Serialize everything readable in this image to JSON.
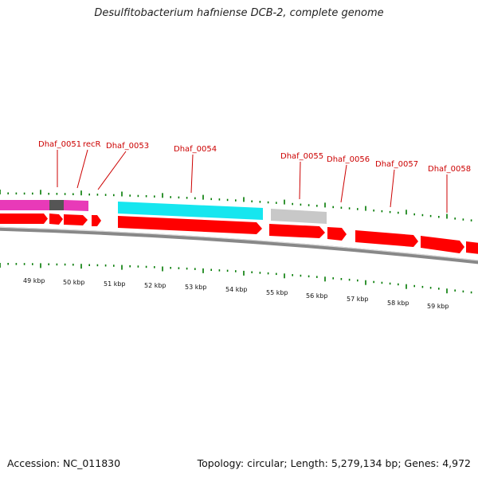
{
  "title": "Desulfitobacterium hafniense DCB-2, complete genome",
  "footer": {
    "accession": "Accession: NC_011830",
    "summary": "Topology: circular; Length: 5,279,134 bp; Genes: 4,972"
  },
  "colors": {
    "gene_label": "#cc0000",
    "cds": "#ff0000",
    "feature_magenta": "#e83ab8",
    "feature_cyan": "#16e6ef",
    "feature_gray": "#c8c8c8",
    "feature_darkgray": "#555555",
    "tick": "#007a00",
    "backbone": "#888888"
  },
  "gene_labels": [
    {
      "id": "dhaf0051",
      "text": "Dhaf_0051"
    },
    {
      "id": "recR",
      "text": "recR"
    },
    {
      "id": "dhaf0053",
      "text": "Dhaf_0053"
    },
    {
      "id": "dhaf0054",
      "text": "Dhaf_0054"
    },
    {
      "id": "dhaf0055",
      "text": "Dhaf_0055"
    },
    {
      "id": "dhaf0056",
      "text": "Dhaf_0056"
    },
    {
      "id": "dhaf0057",
      "text": "Dhaf_0057"
    },
    {
      "id": "dhaf0058",
      "text": "Dhaf_0058"
    }
  ],
  "scale_labels": [
    "49 kbp",
    "50 kbp",
    "51 kbp",
    "52 kbp",
    "53 kbp",
    "54 kbp",
    "55 kbp",
    "56 kbp",
    "57 kbp",
    "58 kbp",
    "59 kbp"
  ]
}
